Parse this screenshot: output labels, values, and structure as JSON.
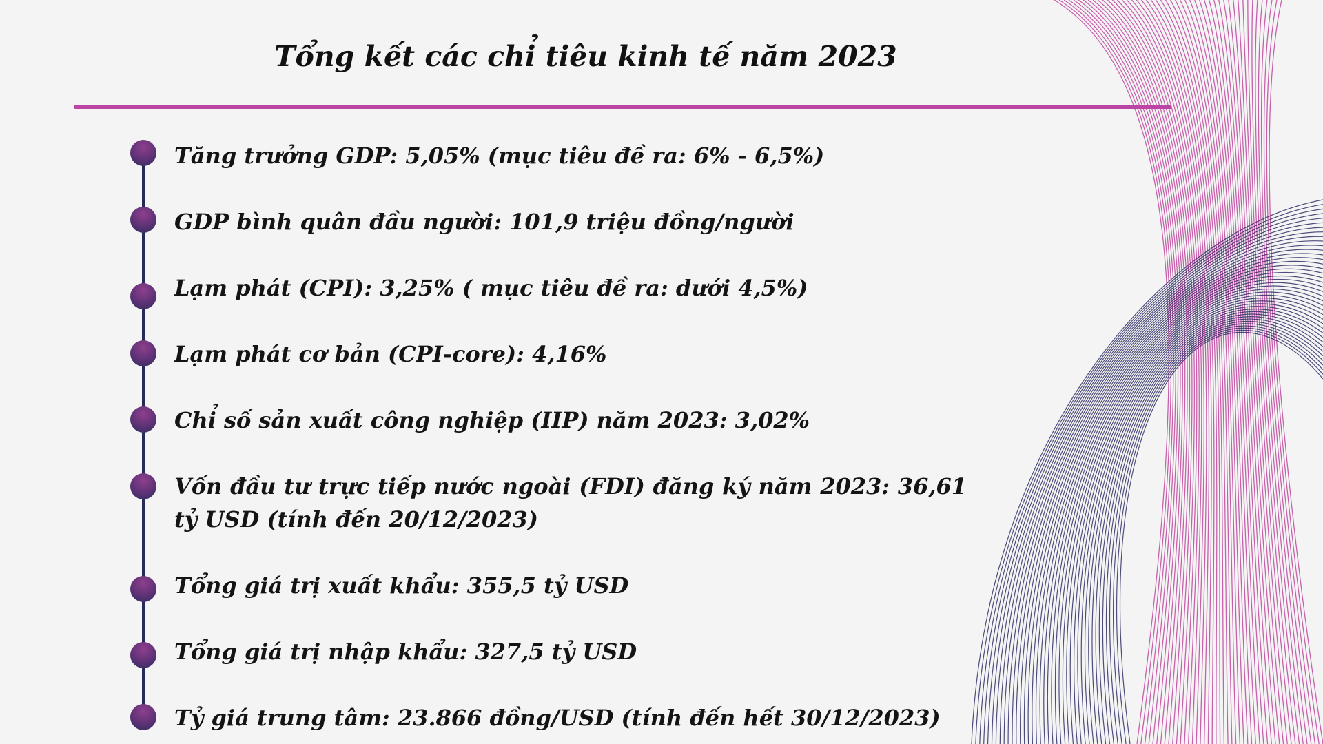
{
  "title": "Tổng kết các chỉ tiêu kinh tế năm 2023",
  "colors": {
    "background": "#f4f4f4",
    "accent_magenta": "#bc44a4",
    "timeline_navy": "#262a58",
    "bullet_purple": "#6a3580"
  },
  "items": [
    {
      "text": "Tăng trưởng GDP: 5,05% (mục tiêu đề ra: 6% - 6,5%)"
    },
    {
      "text": "GDP bình quân đầu người: 101,9 triệu đồng/người"
    },
    {
      "text": "Lạm phát (CPI): 3,25% ( mục tiêu đề ra: dưới 4,5%)"
    },
    {
      "text": "Lạm phát cơ bản (CPI-core):  4,16%"
    },
    {
      "text": "Chỉ số sản xuất công nghiệp (IIP) năm 2023: 3,02%"
    },
    {
      "text": "Vốn đầu tư trực tiếp nước ngoài (FDI) đăng ký năm 2023: 36,61 tỷ USD (tính đến 20/12/2023)"
    },
    {
      "text": "Tổng giá trị xuất khẩu: 355,5 tỷ USD"
    },
    {
      "text": "Tổng giá trị nhập khẩu: 327,5 tỷ USD"
    },
    {
      "text": "Tỷ giá trung tâm: 23.866 đồng/USD (tính đến hết 30/12/2023)"
    }
  ]
}
